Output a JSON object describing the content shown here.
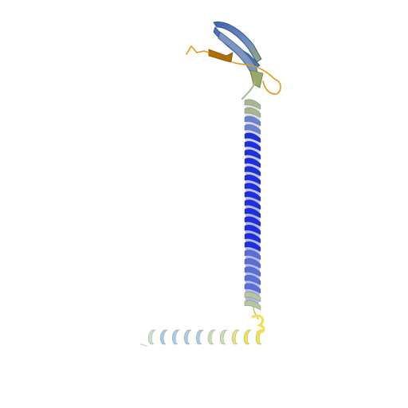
{
  "image": {
    "subject": "protein-ribbon-structure",
    "background": "#ffffff"
  },
  "colors": {
    "helix_deep_blue": "#1f2fdc",
    "helix_mid_blue": "#5a6fd6",
    "helix_grey_green": "#a9b78f",
    "helix_light_blue": "#a9cbe8",
    "helix_yellow": "#f2e14a",
    "sheet_steel_blue": "#5b7fb8",
    "loop_orange": "#e39a12",
    "strand_dark_orange": "#b06f05",
    "strand_olive": "#9aa86a"
  }
}
